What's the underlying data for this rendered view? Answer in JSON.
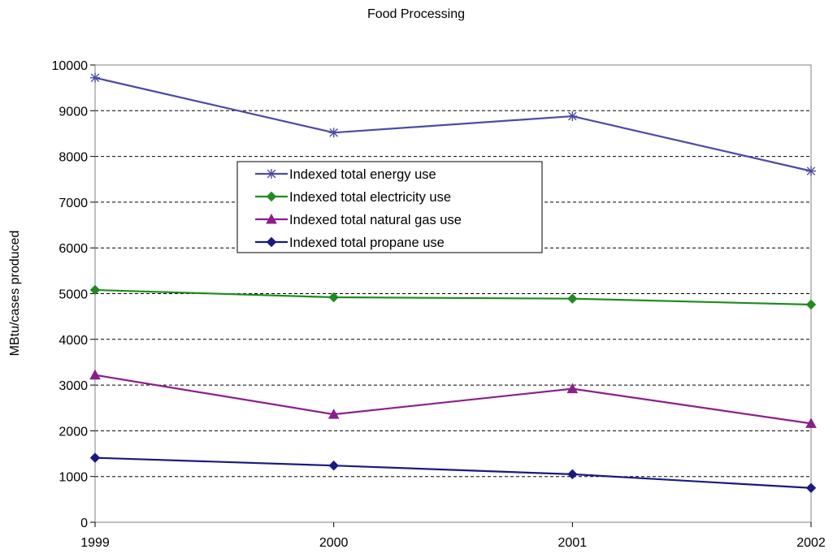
{
  "chart_data": {
    "type": "line",
    "title": "Food Processing",
    "xlabel": "",
    "ylabel": "MBtu/cases produced",
    "categories": [
      "1999",
      "2000",
      "2001",
      "2002"
    ],
    "ylim": [
      0,
      10000
    ],
    "yticks": [
      0,
      1000,
      2000,
      3000,
      4000,
      5000,
      6000,
      7000,
      8000,
      9000,
      10000
    ],
    "grid": "horizontal dashed",
    "legend_position": "center-left inside plot",
    "series": [
      {
        "name": "Indexed total energy use",
        "values": [
          9720,
          8520,
          8880,
          7680
        ],
        "color": "#4B4BA6",
        "marker": "asterisk"
      },
      {
        "name": "Indexed total electricity use",
        "values": [
          5080,
          4920,
          4890,
          4760
        ],
        "color": "#1E8C1E",
        "marker": "diamond"
      },
      {
        "name": "Indexed total natural gas use",
        "values": [
          3220,
          2360,
          2920,
          2160
        ],
        "color": "#8C1E8C",
        "marker": "triangle"
      },
      {
        "name": "Indexed total propane use",
        "values": [
          1410,
          1240,
          1050,
          750
        ],
        "color": "#1A1A80",
        "marker": "diamond"
      }
    ]
  }
}
